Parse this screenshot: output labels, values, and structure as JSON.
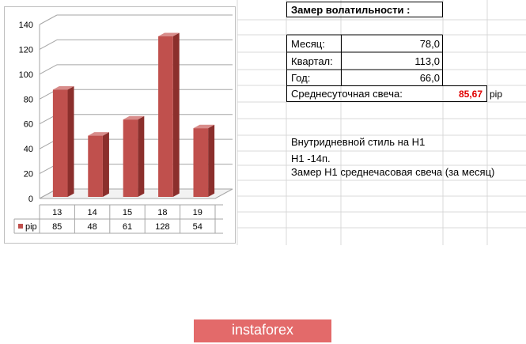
{
  "sheet": {
    "title": "Замер  волатильности  :",
    "rows": [
      {
        "label": "Месяц:",
        "value": "78,0"
      },
      {
        "label": "Квартал:",
        "value": "113,0"
      },
      {
        "label": "Год:",
        "value": "66,0"
      }
    ],
    "avg_label": "Среднесуточная свеча:",
    "avg_value": "85,67",
    "avg_unit": "pip",
    "notes": [
      "Внутридневной стиль на Н1",
      "Н1 -14п.",
      "Замер Н1 среднечасовая свеча (за месяц)"
    ]
  },
  "chart_data": {
    "type": "bar",
    "categories": [
      "13",
      "14",
      "15",
      "18",
      "19"
    ],
    "series": [
      {
        "name": "pip",
        "values": [
          85,
          48,
          61,
          128,
          54
        ],
        "color": "#c0504d"
      }
    ],
    "ylim": [
      0,
      140
    ],
    "yticks": [
      "0",
      "20",
      "40",
      "60",
      "80",
      "100",
      "120",
      "140"
    ],
    "grid": true,
    "legend": "data-table"
  },
  "logo": {
    "text": "instaforex",
    "color": "#e36a6a"
  }
}
